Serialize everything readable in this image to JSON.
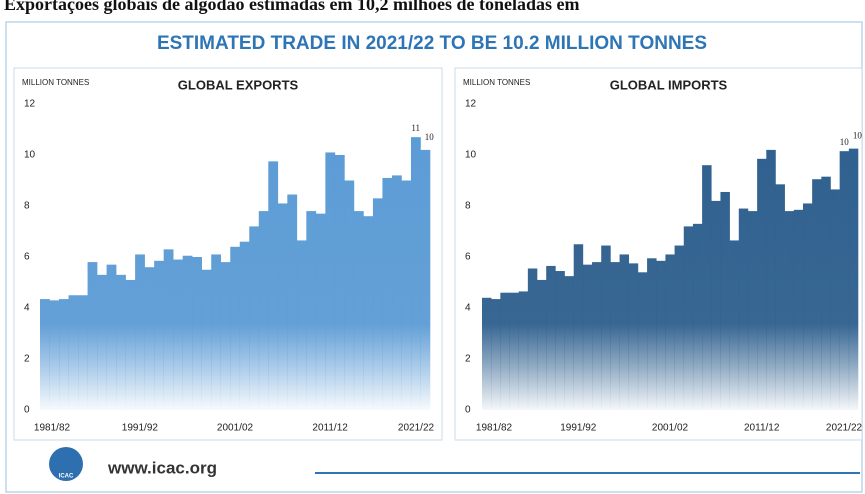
{
  "header": {
    "caption": "Exportações globais de algodão estimadas em 10,2 milhões de toneladas em"
  },
  "title": "ESTIMATED TRADE IN 2021/22 TO BE 10.2 MILLION TONNES",
  "footer": {
    "url": "www.icac.org",
    "logo": "ICAC"
  },
  "chart_data": [
    {
      "type": "bar",
      "title": "GLOBAL EXPORTS",
      "y_label": "MILLION TONNES",
      "categories": [
        "1981/82",
        null,
        null,
        null,
        null,
        null,
        null,
        null,
        null,
        null,
        "1991/92",
        null,
        null,
        null,
        null,
        null,
        null,
        null,
        null,
        null,
        "2001/02",
        null,
        null,
        null,
        null,
        null,
        null,
        null,
        null,
        null,
        "2011/12",
        null,
        null,
        null,
        null,
        null,
        null,
        null,
        null,
        null,
        "2021/22"
      ],
      "values": [
        4.35,
        4.3,
        4.35,
        4.5,
        4.5,
        5.8,
        5.3,
        5.7,
        5.3,
        5.1,
        6.1,
        5.6,
        5.85,
        6.3,
        5.9,
        6.05,
        6.0,
        5.5,
        6.1,
        5.8,
        6.4,
        6.6,
        7.2,
        7.8,
        9.75,
        8.1,
        8.45,
        6.65,
        7.8,
        7.7,
        10.1,
        10.0,
        9.0,
        7.8,
        7.6,
        8.3,
        9.1,
        9.2,
        9.0,
        10.7,
        10.2
      ],
      "value_labels": [
        null,
        null,
        null,
        null,
        null,
        null,
        null,
        null,
        null,
        null,
        null,
        null,
        null,
        null,
        null,
        null,
        null,
        null,
        null,
        null,
        null,
        null,
        null,
        null,
        null,
        null,
        null,
        null,
        null,
        null,
        null,
        null,
        null,
        null,
        null,
        null,
        null,
        null,
        null,
        "11",
        "10"
      ],
      "color": "#5b9bd5",
      "ylim": [
        0,
        12
      ],
      "yticks": [
        0,
        2,
        4,
        6,
        8,
        10,
        12
      ]
    },
    {
      "type": "bar",
      "title": "GLOBAL IMPORTS",
      "y_label": "MILLION TONNES",
      "categories": [
        "1981/82",
        null,
        null,
        null,
        null,
        null,
        null,
        null,
        null,
        null,
        "1991/92",
        null,
        null,
        null,
        null,
        null,
        null,
        null,
        null,
        null,
        "2001/02",
        null,
        null,
        null,
        null,
        null,
        null,
        null,
        null,
        null,
        "2011/12",
        null,
        null,
        null,
        null,
        null,
        null,
        null,
        null,
        null,
        "2021/22"
      ],
      "values": [
        4.4,
        4.35,
        4.6,
        4.6,
        4.65,
        5.55,
        5.1,
        5.65,
        5.45,
        5.25,
        6.5,
        5.7,
        5.8,
        6.45,
        5.8,
        6.1,
        5.75,
        5.4,
        5.95,
        5.85,
        6.1,
        6.45,
        7.2,
        7.3,
        9.6,
        8.2,
        8.55,
        6.65,
        7.9,
        7.8,
        9.85,
        10.2,
        8.85,
        7.8,
        7.85,
        8.1,
        9.05,
        9.15,
        8.65,
        10.15,
        10.25
      ],
      "value_labels": [
        null,
        null,
        null,
        null,
        null,
        null,
        null,
        null,
        null,
        null,
        null,
        null,
        null,
        null,
        null,
        null,
        null,
        null,
        null,
        null,
        null,
        null,
        null,
        null,
        null,
        null,
        null,
        null,
        null,
        null,
        null,
        null,
        null,
        null,
        null,
        null,
        null,
        null,
        null,
        "10",
        "10"
      ],
      "color": "#2e5f8e",
      "ylim": [
        0,
        12
      ],
      "yticks": [
        0,
        2,
        4,
        6,
        8,
        10,
        12
      ]
    }
  ]
}
